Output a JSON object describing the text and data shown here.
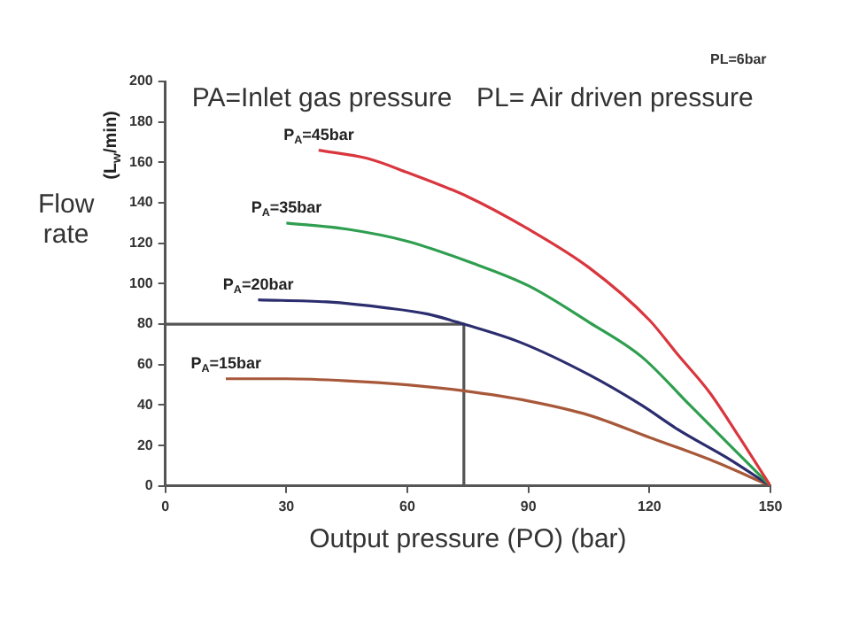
{
  "chart_data": {
    "type": "line",
    "xlabel": "Output pressure (PO) (bar)",
    "ylabel": "(L$_{w}$/min)",
    "annotations": [
      "PA=Inlet gas pressure",
      "PL=6bar",
      "PL= Air driven pressure",
      "Flow rate"
    ],
    "xlim": [
      0,
      150
    ],
    "xticks": [
      0,
      30,
      60,
      90,
      120,
      150
    ],
    "ylim": [
      0,
      200
    ],
    "yticks": [
      0,
      20,
      40,
      60,
      80,
      100,
      120,
      140,
      160,
      180,
      200
    ],
    "grid": false,
    "legend": false,
    "marker": "none",
    "line_style": "solid",
    "series": [
      {
        "name": "P$_{A}$=45bar",
        "color": "#d9363e",
        "x": [
          38,
          50,
          60,
          75,
          90,
          105,
          120,
          127,
          135,
          142,
          150
        ],
        "values": [
          166,
          162,
          155,
          143,
          127,
          108,
          82,
          65,
          46,
          25,
          0
        ]
      },
      {
        "name": "P$_{A}$=35bar",
        "color": "#2e9e4f",
        "x": [
          30,
          45,
          60,
          75,
          90,
          105,
          118,
          130,
          140,
          150
        ],
        "values": [
          130,
          127,
          121,
          111,
          99,
          81,
          64,
          40,
          20,
          0
        ]
      },
      {
        "name": "P$_{A}$=20bar",
        "color": "#2b2d6e",
        "x": [
          23,
          40,
          55,
          65,
          74,
          88,
          105,
          118,
          127,
          140,
          150
        ],
        "values": [
          92,
          91,
          88,
          85,
          80,
          71,
          55,
          40,
          28,
          13,
          0
        ]
      },
      {
        "name": "P$_{A}$=15bar",
        "color": "#a8583a",
        "x": [
          15,
          30,
          45,
          60,
          74,
          90,
          105,
          120,
          135,
          150
        ],
        "values": [
          53,
          53,
          52,
          50,
          47,
          42,
          35,
          24,
          13,
          0
        ]
      },
      {
        "color": "#555555",
        "x": [
          0,
          74,
          74
        ],
        "values": [
          80,
          80,
          0
        ]
      }
    ]
  }
}
